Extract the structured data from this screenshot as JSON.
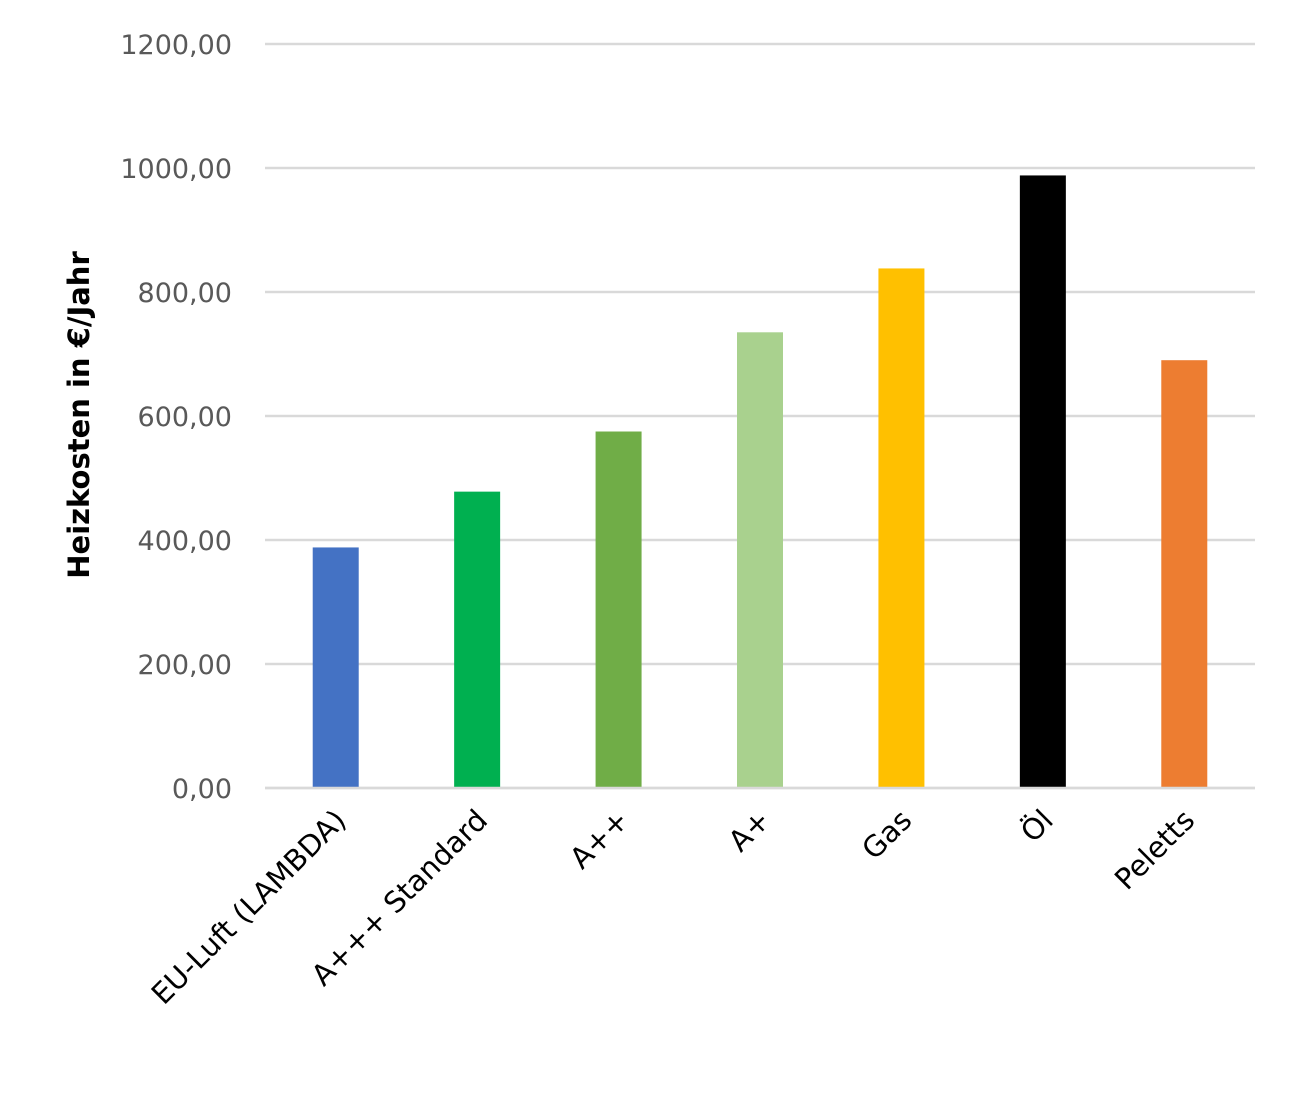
{
  "chart_data": {
    "type": "bar",
    "title": "",
    "xlabel": "",
    "ylabel": "Heizkosten in €/Jahr",
    "ylim": [
      0,
      1200
    ],
    "yticks": [
      0,
      200,
      400,
      600,
      800,
      1000,
      1200
    ],
    "ytick_labels": [
      "0,00",
      "200,00",
      "400,00",
      "600,00",
      "800,00",
      "1000,00",
      "1200,00"
    ],
    "grid": true,
    "legend": "none",
    "categories": [
      "EU-Luft (LAMBDA)",
      "A+++ Standard",
      "A++",
      "A+",
      "Gas",
      "Öl",
      "Peletts"
    ],
    "values": [
      388,
      478,
      575,
      735,
      838,
      988,
      690
    ],
    "colors": [
      "#4472c4",
      "#00b050",
      "#70ad47",
      "#a9d18e",
      "#ffc000",
      "#000000",
      "#ed7d31"
    ]
  }
}
